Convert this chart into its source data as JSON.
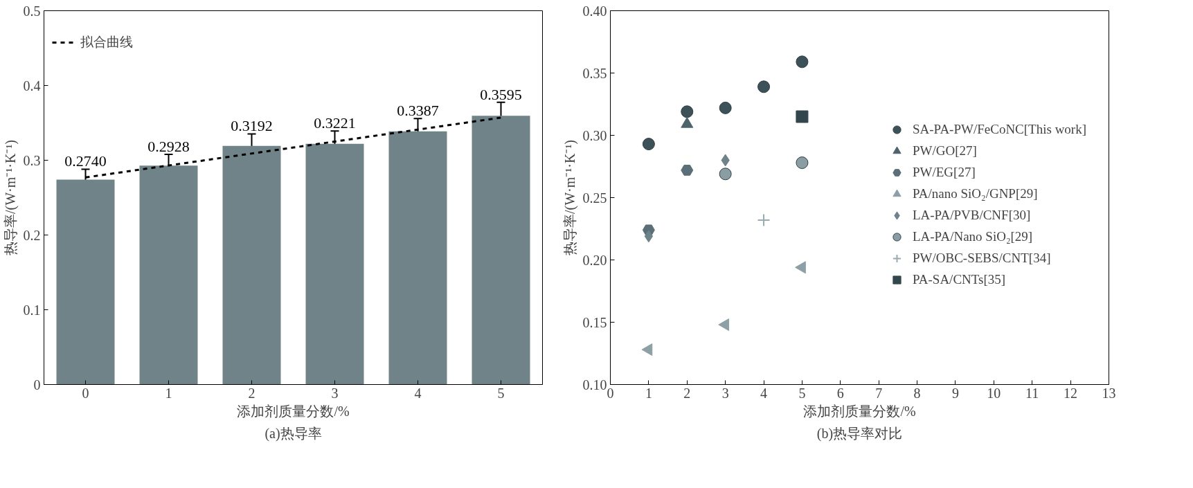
{
  "chart_data": [
    {
      "type": "bar",
      "title": "(a)热导率",
      "xlabel": "添加剂质量分数/%",
      "ylabel": "热导率/(W·m⁻¹·K⁻¹)",
      "x": [
        0,
        1,
        2,
        3,
        4,
        5
      ],
      "xlim": [
        -0.5,
        5.5
      ],
      "xticks": [
        0,
        1,
        2,
        3,
        4,
        5
      ],
      "ylim": [
        0,
        0.5
      ],
      "yticks": [
        0,
        0.1,
        0.2,
        0.3,
        0.4,
        0.5
      ],
      "grid": false,
      "legend": "top left",
      "series": [
        {
          "type": "bar",
          "color": "#6f8389",
          "values": [
            0.274,
            0.2928,
            0.3192,
            0.3221,
            0.3387,
            0.3595
          ],
          "errors": [
            0.014,
            0.015,
            0.016,
            0.017,
            0.017,
            0.018
          ],
          "value_labels": [
            "0.2740",
            "0.2928",
            "0.3192",
            "0.3221",
            "0.3387",
            "0.3595"
          ]
        },
        {
          "type": "line",
          "name": "拟合曲线",
          "color": "#000000",
          "line_style": "dashed",
          "x": [
            0,
            5
          ],
          "values": [
            0.277,
            0.357
          ]
        }
      ]
    },
    {
      "type": "scatter",
      "title": "(b)热导率对比",
      "xlabel": "添加剂质量分数/%",
      "ylabel": "热导率/(W·m⁻¹·K⁻¹)",
      "xlim": [
        0,
        13
      ],
      "xticks": [
        0,
        1,
        2,
        3,
        4,
        5,
        6,
        7,
        8,
        9,
        10,
        11,
        12,
        13
      ],
      "ylim": [
        0.1,
        0.4
      ],
      "yticks": [
        {
          "value": 0.1,
          "label": "0.10"
        },
        {
          "value": 0.15,
          "label": "0.15"
        },
        {
          "value": 0.2,
          "label": "0.20"
        },
        {
          "value": 0.25,
          "label": "0.25"
        },
        {
          "value": 0.3,
          "label": "0.30"
        },
        {
          "value": 0.35,
          "label": "0.35"
        },
        {
          "value": 0.4,
          "label": "0.40"
        }
      ],
      "grid": false,
      "legend": "right",
      "series": [
        {
          "name": "SA-PA-PW/FeCoNC[This work]",
          "marker": "circle",
          "color": "#3d5159",
          "x": [
            1,
            2,
            3,
            4,
            5
          ],
          "values": [
            0.293,
            0.319,
            0.322,
            0.339,
            0.359
          ]
        },
        {
          "name": "PW/GO[27]",
          "marker": "triangle",
          "color": "#4e646c",
          "x": [
            2
          ],
          "values": [
            0.309
          ]
        },
        {
          "name": "PW/EG[27]",
          "color": "#5a6f77",
          "x": [
            1,
            2
          ],
          "values": [
            0.224,
            0.272
          ]
        },
        {
          "name": "PA/nano SiO₂/GNP[29]",
          "marker": "triangle-left",
          "color": "#8da0a5",
          "x": [
            1,
            3,
            5
          ],
          "values": [
            0.128,
            0.148,
            0.194
          ]
        },
        {
          "name": "LA-PA/PVB/CNF[30]",
          "marker": "diamond",
          "color": "#6e8289",
          "x": [
            1,
            3
          ],
          "values": [
            0.219,
            0.28
          ]
        },
        {
          "name": "LA-PA/Nano SiO₂[29]",
          "marker": "circle",
          "color": "#8a9da3",
          "x": [
            3,
            5
          ],
          "values": [
            0.269,
            0.278
          ]
        },
        {
          "name": "PW/OBC-SEBS/CNT[34]",
          "marker": "cross",
          "color": "#9aaab0",
          "x": [
            4
          ],
          "values": [
            0.232
          ]
        },
        {
          "name": "PA-SA/CNTs[35]",
          "marker": "square",
          "color": "#34464d",
          "x": [
            5
          ],
          "values": [
            0.315
          ]
        }
      ]
    }
  ]
}
